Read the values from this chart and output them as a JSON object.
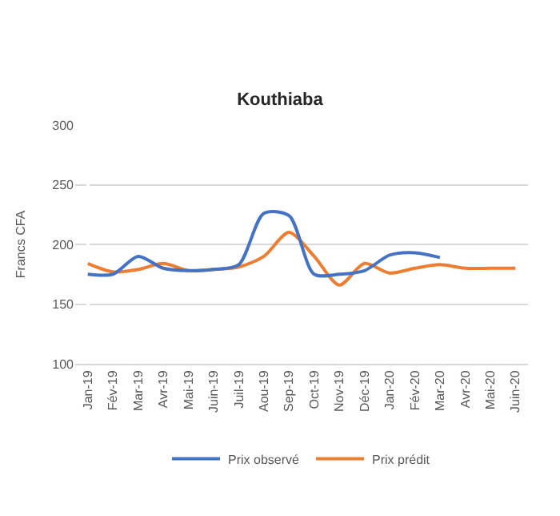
{
  "chart_data": {
    "type": "line",
    "title": "Kouthiaba",
    "ylabel": "Francs CFA",
    "categories": [
      "Jan-19",
      "Fév-19",
      "Mar-19",
      "Avr-19",
      "Mai-19",
      "Juin-19",
      "Juil-19",
      "Aou-19",
      "Sep-19",
      "Oct-19",
      "Nov-19",
      "Déc-19",
      "Jan-20",
      "Fév-20",
      "Mar-20",
      "Avr-20",
      "Mai-20",
      "Juin-20"
    ],
    "series": [
      {
        "name": "Prix observé",
        "color": "#4472c4",
        "values": [
          175,
          175,
          190,
          180,
          178,
          179,
          183,
          226,
          224,
          175,
          175,
          178,
          191,
          193,
          189,
          null,
          null,
          null
        ]
      },
      {
        "name": "Prix prédit",
        "color": "#ed7d31",
        "values": [
          184,
          177,
          179,
          184,
          178,
          179,
          181,
          190,
          210,
          190,
          166,
          184,
          176,
          180,
          183,
          180,
          180,
          180
        ]
      }
    ],
    "ylim": [
      100,
      300
    ],
    "yticks": [
      100,
      150,
      200,
      250,
      300
    ],
    "grid": "y",
    "legend": "bottom",
    "marker": "none",
    "line_style": "solid"
  }
}
